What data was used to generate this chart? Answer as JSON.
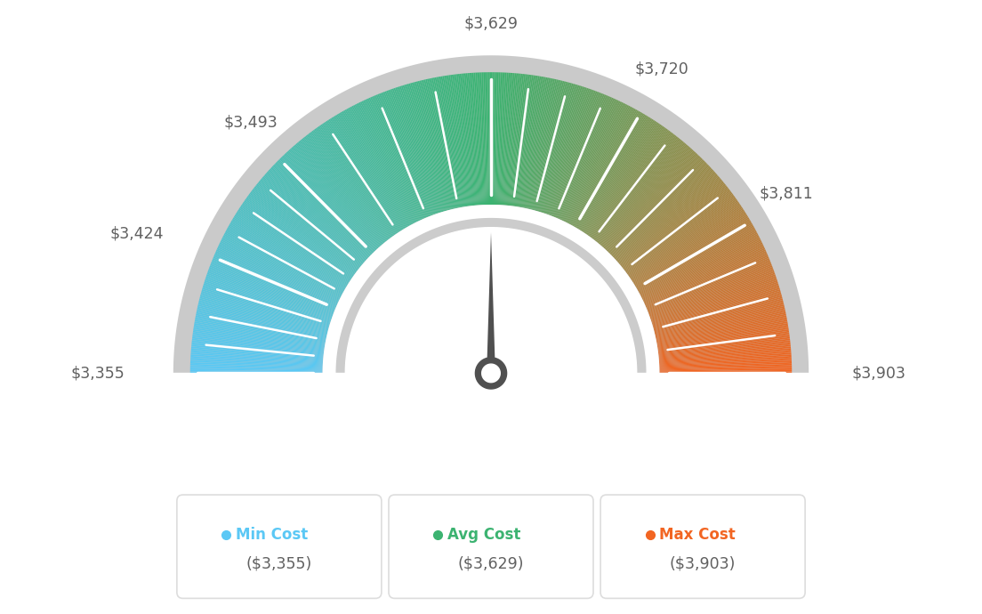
{
  "min_val": 3355,
  "max_val": 3903,
  "avg_val": 3629,
  "tick_labels": [
    "$3,355",
    "$3,424",
    "$3,493",
    "$3,629",
    "$3,720",
    "$3,811",
    "$3,903"
  ],
  "tick_values": [
    3355,
    3424,
    3493,
    3629,
    3720,
    3811,
    3903
  ],
  "color_min": "#5BC8F5",
  "color_avg": "#3CB371",
  "color_max": "#F26522",
  "bg_color": "#FFFFFF",
  "needle_color": "#505050",
  "text_color": "#606060",
  "legend_min_label": "Min Cost",
  "legend_avg_label": "Avg Cost",
  "legend_max_label": "Max Cost",
  "legend_min_value": "($3,355)",
  "legend_avg_value": "($3,629)",
  "legend_max_value": "($3,903)"
}
